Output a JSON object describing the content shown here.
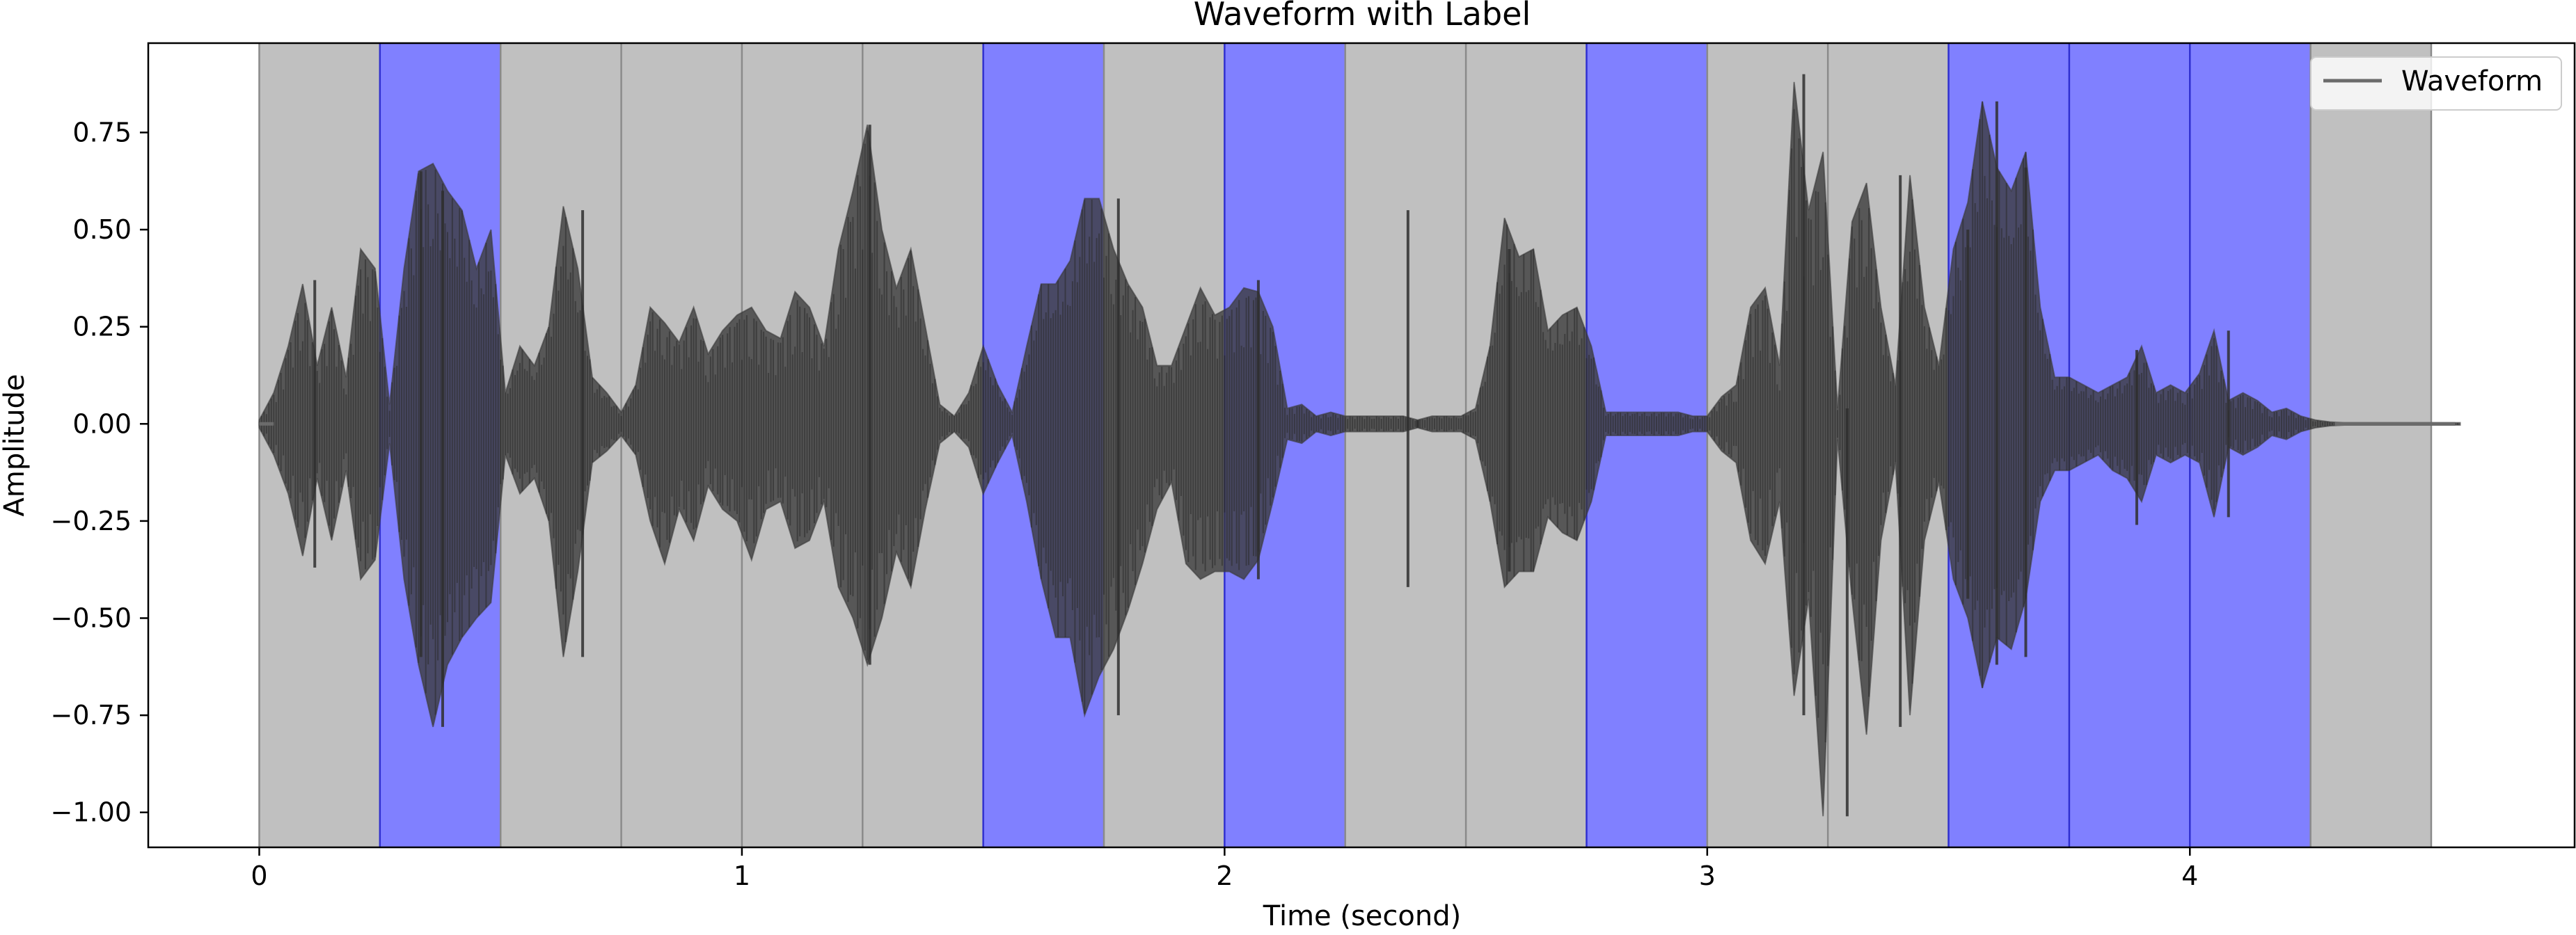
{
  "chart_data": {
    "type": "line",
    "title": "Waveform with Label",
    "xlabel": "Time (second)",
    "ylabel": "Amplitude",
    "xlim": [
      -0.23,
      4.8
    ],
    "ylim": [
      -1.09,
      0.98
    ],
    "x_ticks": [
      0,
      1,
      2,
      3,
      4
    ],
    "x_tick_labels": [
      "0",
      "1",
      "2",
      "3",
      "4"
    ],
    "y_ticks": [
      -1.0,
      -0.75,
      -0.5,
      -0.25,
      0.0,
      0.25,
      0.5,
      0.75
    ],
    "y_tick_labels": [
      "−1.00",
      "−0.75",
      "−0.50",
      "−0.25",
      "0.00",
      "0.25",
      "0.50",
      "0.75"
    ],
    "grid": false,
    "legend": {
      "position": "top-right",
      "entries": [
        "Waveform"
      ]
    },
    "waveform_color": "#3a3a3a",
    "label_colors": {
      "0": "#c0c0c0",
      "1": "#8080ff"
    },
    "segments": [
      {
        "start": 0.0,
        "end": 0.25,
        "label": 0
      },
      {
        "start": 0.25,
        "end": 0.5,
        "label": 1
      },
      {
        "start": 0.5,
        "end": 0.75,
        "label": 0
      },
      {
        "start": 0.75,
        "end": 1.0,
        "label": 0
      },
      {
        "start": 1.0,
        "end": 1.25,
        "label": 0
      },
      {
        "start": 1.25,
        "end": 1.5,
        "label": 0
      },
      {
        "start": 1.5,
        "end": 1.75,
        "label": 1
      },
      {
        "start": 1.75,
        "end": 2.0,
        "label": 0
      },
      {
        "start": 2.0,
        "end": 2.25,
        "label": 1
      },
      {
        "start": 2.25,
        "end": 2.5,
        "label": 0
      },
      {
        "start": 2.5,
        "end": 2.75,
        "label": 0
      },
      {
        "start": 2.75,
        "end": 3.0,
        "label": 1
      },
      {
        "start": 3.0,
        "end": 3.25,
        "label": 0
      },
      {
        "start": 3.25,
        "end": 3.5,
        "label": 0
      },
      {
        "start": 3.5,
        "end": 3.75,
        "label": 1
      },
      {
        "start": 3.75,
        "end": 4.0,
        "label": 1
      },
      {
        "start": 4.0,
        "end": 4.25,
        "label": 1
      },
      {
        "start": 4.25,
        "end": 4.5,
        "label": 0
      }
    ],
    "envelope": {
      "x": [
        0.0,
        0.03,
        0.06,
        0.09,
        0.12,
        0.15,
        0.18,
        0.21,
        0.24,
        0.27,
        0.3,
        0.33,
        0.36,
        0.39,
        0.42,
        0.45,
        0.48,
        0.51,
        0.54,
        0.57,
        0.6,
        0.63,
        0.66,
        0.69,
        0.72,
        0.75,
        0.78,
        0.81,
        0.84,
        0.87,
        0.9,
        0.93,
        0.96,
        0.99,
        1.02,
        1.05,
        1.08,
        1.11,
        1.14,
        1.17,
        1.2,
        1.23,
        1.26,
        1.29,
        1.32,
        1.35,
        1.38,
        1.41,
        1.44,
        1.47,
        1.5,
        1.53,
        1.56,
        1.59,
        1.62,
        1.65,
        1.68,
        1.71,
        1.74,
        1.77,
        1.8,
        1.83,
        1.86,
        1.89,
        1.92,
        1.95,
        1.98,
        2.01,
        2.04,
        2.07,
        2.1,
        2.13,
        2.16,
        2.19,
        2.22,
        2.25,
        2.28,
        2.31,
        2.34,
        2.37,
        2.4,
        2.43,
        2.46,
        2.49,
        2.52,
        2.55,
        2.58,
        2.61,
        2.64,
        2.67,
        2.7,
        2.73,
        2.76,
        2.79,
        2.82,
        2.85,
        2.88,
        2.91,
        2.94,
        2.97,
        3.0,
        3.03,
        3.06,
        3.09,
        3.12,
        3.15,
        3.18,
        3.21,
        3.24,
        3.27,
        3.3,
        3.33,
        3.36,
        3.39,
        3.42,
        3.45,
        3.48,
        3.51,
        3.54,
        3.57,
        3.6,
        3.63,
        3.66,
        3.69,
        3.72,
        3.75,
        3.78,
        3.81,
        3.84,
        3.87,
        3.9,
        3.93,
        3.96,
        3.99,
        4.02,
        4.05,
        4.08,
        4.11,
        4.14,
        4.17,
        4.2,
        4.23,
        4.26,
        4.29,
        4.32,
        4.35,
        4.38,
        4.41,
        4.44,
        4.47,
        4.5,
        4.53,
        4.56
      ],
      "top": [
        0.01,
        0.08,
        0.2,
        0.36,
        0.15,
        0.3,
        0.12,
        0.45,
        0.4,
        0.05,
        0.4,
        0.65,
        0.67,
        0.6,
        0.55,
        0.4,
        0.5,
        0.08,
        0.2,
        0.15,
        0.25,
        0.56,
        0.4,
        0.12,
        0.08,
        0.03,
        0.1,
        0.3,
        0.26,
        0.21,
        0.3,
        0.18,
        0.24,
        0.28,
        0.3,
        0.24,
        0.22,
        0.34,
        0.3,
        0.2,
        0.45,
        0.6,
        0.77,
        0.5,
        0.35,
        0.45,
        0.25,
        0.05,
        0.02,
        0.08,
        0.2,
        0.1,
        0.03,
        0.2,
        0.36,
        0.36,
        0.42,
        0.58,
        0.58,
        0.45,
        0.36,
        0.3,
        0.15,
        0.15,
        0.25,
        0.35,
        0.28,
        0.3,
        0.35,
        0.34,
        0.25,
        0.04,
        0.05,
        0.02,
        0.03,
        0.02,
        0.02,
        0.02,
        0.02,
        0.02,
        0.01,
        0.02,
        0.02,
        0.02,
        0.04,
        0.2,
        0.53,
        0.43,
        0.45,
        0.24,
        0.28,
        0.3,
        0.2,
        0.03,
        0.03,
        0.03,
        0.03,
        0.03,
        0.03,
        0.02,
        0.02,
        0.07,
        0.1,
        0.3,
        0.35,
        0.15,
        0.88,
        0.55,
        0.7,
        0.04,
        0.52,
        0.62,
        0.3,
        0.1,
        0.64,
        0.3,
        0.15,
        0.45,
        0.57,
        0.83,
        0.66,
        0.6,
        0.7,
        0.3,
        0.12,
        0.12,
        0.1,
        0.08,
        0.1,
        0.12,
        0.2,
        0.08,
        0.1,
        0.08,
        0.13,
        0.24,
        0.06,
        0.08,
        0.06,
        0.03,
        0.04,
        0.02,
        0.01,
        0.005,
        0.003,
        0.003,
        0.003,
        0.003,
        0.003,
        0.003,
        0.003,
        0.003,
        0.003
      ],
      "bottom": [
        -0.01,
        -0.08,
        -0.18,
        -0.34,
        -0.14,
        -0.3,
        -0.12,
        -0.4,
        -0.35,
        -0.05,
        -0.4,
        -0.62,
        -0.78,
        -0.62,
        -0.55,
        -0.5,
        -0.46,
        -0.08,
        -0.18,
        -0.14,
        -0.25,
        -0.6,
        -0.38,
        -0.1,
        -0.07,
        -0.03,
        -0.08,
        -0.25,
        -0.36,
        -0.22,
        -0.3,
        -0.16,
        -0.22,
        -0.25,
        -0.35,
        -0.22,
        -0.2,
        -0.32,
        -0.3,
        -0.2,
        -0.42,
        -0.5,
        -0.62,
        -0.5,
        -0.33,
        -0.42,
        -0.22,
        -0.05,
        -0.02,
        -0.06,
        -0.18,
        -0.1,
        -0.03,
        -0.2,
        -0.4,
        -0.55,
        -0.55,
        -0.75,
        -0.65,
        -0.58,
        -0.48,
        -0.36,
        -0.22,
        -0.15,
        -0.36,
        -0.4,
        -0.38,
        -0.38,
        -0.4,
        -0.35,
        -0.2,
        -0.04,
        -0.05,
        -0.02,
        -0.03,
        -0.02,
        -0.02,
        -0.02,
        -0.02,
        -0.02,
        -0.01,
        -0.02,
        -0.02,
        -0.02,
        -0.04,
        -0.2,
        -0.42,
        -0.38,
        -0.38,
        -0.24,
        -0.28,
        -0.3,
        -0.2,
        -0.03,
        -0.03,
        -0.03,
        -0.03,
        -0.03,
        -0.03,
        -0.02,
        -0.02,
        -0.07,
        -0.1,
        -0.3,
        -0.36,
        -0.2,
        -0.7,
        -0.45,
        -1.01,
        -0.04,
        -0.45,
        -0.8,
        -0.3,
        -0.1,
        -0.75,
        -0.3,
        -0.15,
        -0.4,
        -0.5,
        -0.68,
        -0.55,
        -0.58,
        -0.45,
        -0.2,
        -0.12,
        -0.12,
        -0.1,
        -0.08,
        -0.12,
        -0.14,
        -0.2,
        -0.08,
        -0.1,
        -0.08,
        -0.1,
        -0.24,
        -0.06,
        -0.08,
        -0.06,
        -0.03,
        -0.04,
        -0.02,
        -0.01,
        -0.005,
        -0.003,
        -0.003,
        -0.003,
        -0.003,
        -0.003,
        -0.003,
        -0.003,
        -0.003,
        -0.003
      ]
    },
    "extra_spikes": [
      {
        "x": 0.115,
        "top": 0.37,
        "bottom": -0.37
      },
      {
        "x": 0.335,
        "top": 0.65,
        "bottom": -0.6
      },
      {
        "x": 0.38,
        "top": 0.6,
        "bottom": -0.78
      },
      {
        "x": 0.67,
        "top": 0.55,
        "bottom": -0.6
      },
      {
        "x": 1.265,
        "top": 0.77,
        "bottom": -0.62
      },
      {
        "x": 1.78,
        "top": 0.58,
        "bottom": -0.75
      },
      {
        "x": 2.07,
        "top": 0.37,
        "bottom": -0.4
      },
      {
        "x": 2.4,
        "top": 0.01,
        "bottom": -0.01
      },
      {
        "x": 2.38,
        "top": 0.55,
        "bottom": -0.42
      },
      {
        "x": 2.59,
        "top": 0.45,
        "bottom": -0.38
      },
      {
        "x": 3.2,
        "top": 0.9,
        "bottom": -0.75
      },
      {
        "x": 3.29,
        "top": 0.04,
        "bottom": -1.01
      },
      {
        "x": 3.4,
        "top": 0.64,
        "bottom": -0.78
      },
      {
        "x": 3.54,
        "top": 0.5,
        "bottom": -0.45
      },
      {
        "x": 3.6,
        "top": 0.83,
        "bottom": -0.62
      },
      {
        "x": 3.66,
        "top": 0.66,
        "bottom": -0.6
      },
      {
        "x": 3.89,
        "top": 0.19,
        "bottom": -0.26
      },
      {
        "x": 4.08,
        "top": 0.24,
        "bottom": -0.24
      }
    ],
    "tail": {
      "start": 4.3,
      "end": 4.55,
      "value": 0.0
    }
  }
}
